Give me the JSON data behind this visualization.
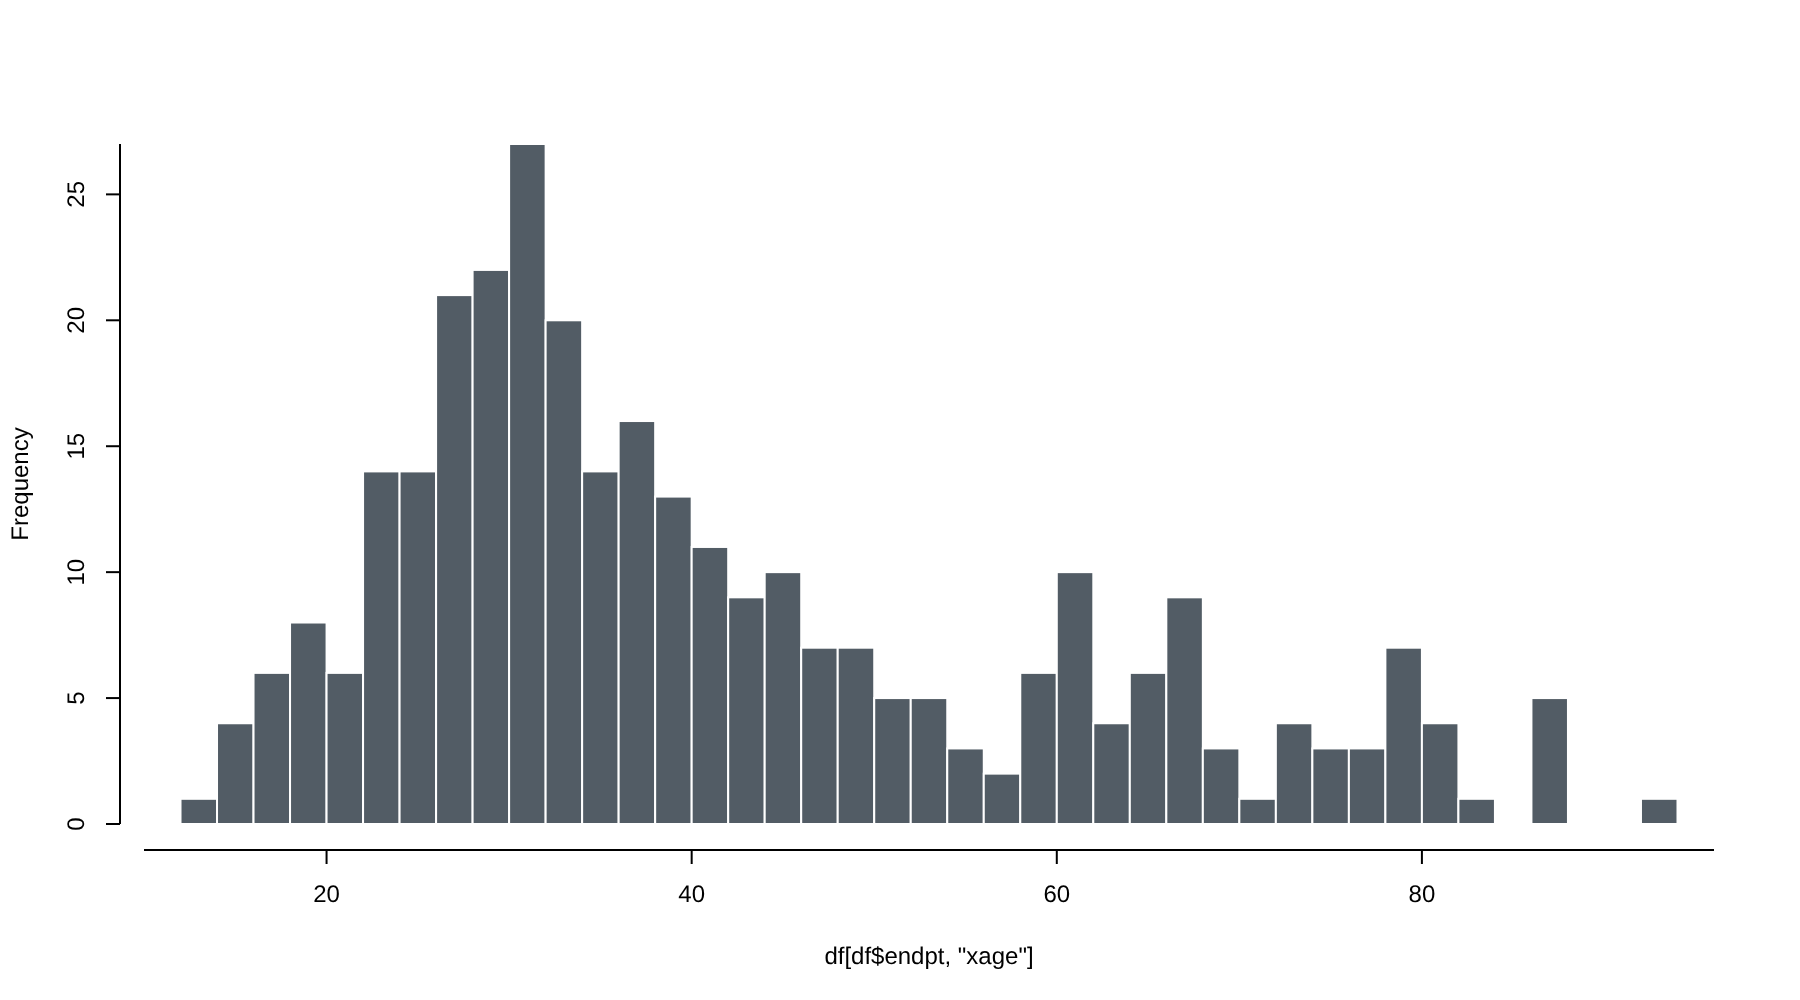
{
  "chart_data": {
    "type": "histogram",
    "xlabel": "df[df$endpt, \"xage\"]",
    "ylabel": "Frequency",
    "bins": [
      12,
      14,
      16,
      18,
      20,
      22,
      24,
      26,
      28,
      30,
      32,
      34,
      36,
      38,
      40,
      42,
      44,
      46,
      48,
      50,
      52,
      54,
      56,
      58,
      60,
      62,
      64,
      66,
      68,
      70,
      72,
      74,
      76,
      78,
      80,
      82,
      84,
      86,
      88,
      90,
      92,
      94
    ],
    "values": [
      1,
      4,
      6,
      8,
      6,
      14,
      14,
      21,
      22,
      27,
      20,
      14,
      16,
      13,
      11,
      9,
      10,
      7,
      7,
      5,
      5,
      3,
      2,
      6,
      10,
      4,
      6,
      9,
      3,
      1,
      4,
      3,
      3,
      7,
      4,
      1,
      0,
      5,
      0,
      0,
      1
    ],
    "color": "#525c65",
    "xlim": [
      10,
      96
    ],
    "xticks": [
      20,
      40,
      60,
      80
    ],
    "ylim": [
      0,
      27
    ],
    "yticks": [
      0,
      5,
      10,
      15,
      20,
      25
    ],
    "grid": false
  }
}
